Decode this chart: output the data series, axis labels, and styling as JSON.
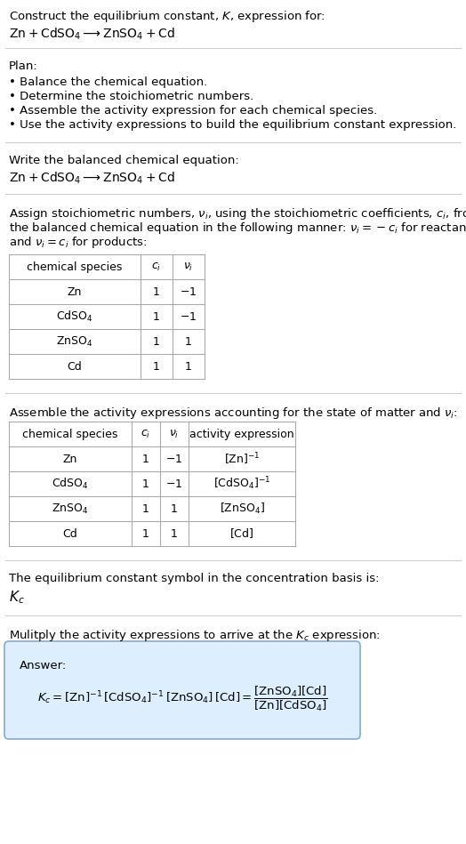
{
  "bg_color": "#ffffff",
  "text_color": "#000000",
  "table_border": "#aaaaaa",
  "answer_box_bg": "#ddeeff",
  "answer_box_border": "#88aacc",
  "title_line1": "Construct the equilibrium constant, $K$, expression for:",
  "title_line2": "$\\mathrm{Zn + CdSO_4 \\longrightarrow ZnSO_4 + Cd}$",
  "plan_header": "Plan:",
  "plan_items": [
    "• Balance the chemical equation.",
    "• Determine the stoichiometric numbers.",
    "• Assemble the activity expression for each chemical species.",
    "• Use the activity expressions to build the equilibrium constant expression."
  ],
  "balanced_header": "Write the balanced chemical equation:",
  "balanced_eq": "$\\mathrm{Zn + CdSO_4 \\longrightarrow ZnSO_4 + Cd}$",
  "stoich_intro_lines": [
    "Assign stoichiometric numbers, $\\nu_i$, using the stoichiometric coefficients, $c_i$, from",
    "the balanced chemical equation in the following manner: $\\nu_i = -c_i$ for reactants",
    "and $\\nu_i = c_i$ for products:"
  ],
  "table1_headers": [
    "chemical species",
    "$c_i$",
    "$\\nu_i$"
  ],
  "table1_rows": [
    [
      "Zn",
      "1",
      "$-1$"
    ],
    [
      "$\\mathrm{CdSO_4}$",
      "1",
      "$-1$"
    ],
    [
      "$\\mathrm{ZnSO_4}$",
      "1",
      "1"
    ],
    [
      "Cd",
      "1",
      "1"
    ]
  ],
  "activity_intro": "Assemble the activity expressions accounting for the state of matter and $\\nu_i$:",
  "table2_headers": [
    "chemical species",
    "$c_i$",
    "$\\nu_i$",
    "activity expression"
  ],
  "table2_rows": [
    [
      "Zn",
      "1",
      "$-1$",
      "$[\\mathrm{Zn}]^{-1}$"
    ],
    [
      "$\\mathrm{CdSO_4}$",
      "1",
      "$-1$",
      "$[\\mathrm{CdSO_4}]^{-1}$"
    ],
    [
      "$\\mathrm{ZnSO_4}$",
      "1",
      "1",
      "$[\\mathrm{ZnSO_4}]$"
    ],
    [
      "Cd",
      "1",
      "1",
      "$[\\mathrm{Cd}]$"
    ]
  ],
  "kc_header": "The equilibrium constant symbol in the concentration basis is:",
  "kc_symbol": "$K_c$",
  "multiply_header": "Mulitply the activity expressions to arrive at the $K_c$ expression:",
  "answer_label": "Answer:",
  "answer_line1": "$K_c = [\\mathrm{Zn}]^{-1}\\,[\\mathrm{CdSO_4}]^{-1}\\,[\\mathrm{ZnSO_4}]\\,[\\mathrm{Cd}] = \\dfrac{[\\mathrm{ZnSO_4}][\\mathrm{Cd}]}{[\\mathrm{Zn}][\\mathrm{CdSO_4}]}$"
}
